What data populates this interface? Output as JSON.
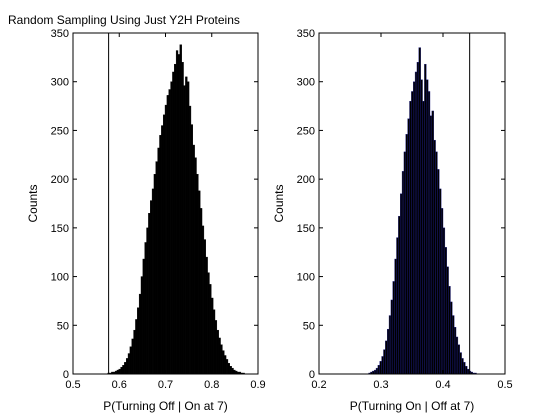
{
  "chart_data": [
    {
      "type": "bar",
      "subtype": "histogram",
      "title": "Random Sampling Using Just Y2H Proteins",
      "xlabel": "P(Turning Off | On at 7)",
      "ylabel": "Counts",
      "xlim": [
        0.5,
        0.9
      ],
      "ylim": [
        0,
        350
      ],
      "xticks": [
        "0.5",
        "0.6",
        "0.7",
        "0.8",
        "0.9"
      ],
      "yticks": [
        "0",
        "50",
        "100",
        "150",
        "200",
        "250",
        "300",
        "350"
      ],
      "bar_color": "#000000",
      "edge_color": "#000000",
      "grid": false,
      "observed_line_x": 0.577,
      "bins": {
        "start": 0.575,
        "width": 0.004,
        "counts": [
          1,
          1,
          2,
          2,
          3,
          4,
          5,
          7,
          9,
          12,
          16,
          21,
          28,
          36,
          45,
          56,
          68,
          82,
          100,
          118,
          135,
          150,
          165,
          178,
          190,
          205,
          218,
          232,
          245,
          255,
          266,
          276,
          286,
          292,
          300,
          310,
          318,
          332,
          328,
          338,
          320,
          296,
          305,
          300,
          275,
          256,
          235,
          222,
          205,
          188,
          170,
          152,
          138,
          120,
          104,
          92,
          78,
          66,
          55,
          45,
          37,
          30,
          24,
          19,
          15,
          11,
          8,
          6,
          4,
          3,
          2,
          2,
          1,
          1
        ]
      }
    },
    {
      "type": "bar",
      "subtype": "histogram",
      "title": "",
      "xlabel": "P(Turning On | Off at 7)",
      "ylabel": "Counts",
      "xlim": [
        0.2,
        0.5
      ],
      "ylim": [
        0,
        350
      ],
      "xticks": [
        "0.2",
        "0.3",
        "0.4",
        "0.5"
      ],
      "yticks": [
        "0",
        "50",
        "100",
        "150",
        "200",
        "250",
        "300",
        "350"
      ],
      "bar_color": "#000000",
      "edge_color": "#1a1a80",
      "grid": false,
      "observed_line_x": 0.443,
      "bins": {
        "start": 0.28,
        "width": 0.003,
        "counts": [
          1,
          2,
          3,
          4,
          6,
          9,
          13,
          18,
          25,
          34,
          46,
          60,
          76,
          95,
          118,
          140,
          162,
          185,
          208,
          228,
          246,
          262,
          280,
          290,
          300,
          310,
          320,
          335,
          302,
          280,
          318,
          302,
          290,
          265,
          270,
          240,
          228,
          210,
          190,
          170,
          150,
          130,
          110,
          90,
          74,
          60,
          48,
          38,
          30,
          22,
          16,
          12,
          8,
          5,
          3,
          2,
          1,
          1
        ]
      }
    }
  ]
}
